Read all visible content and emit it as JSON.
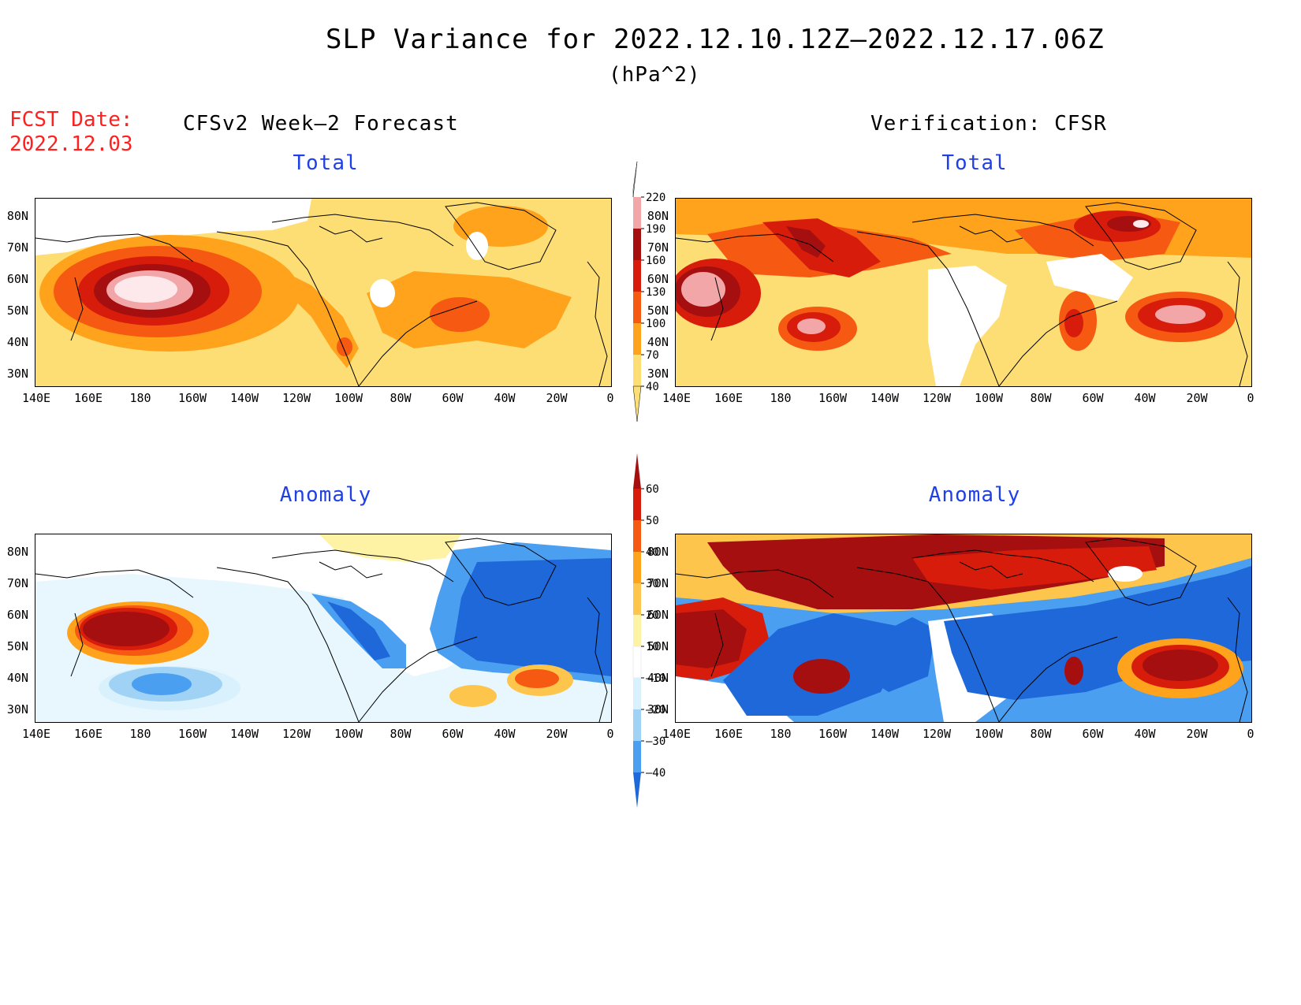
{
  "header": {
    "title": "SLP Variance for 2022.12.10.12Z–2022.12.17.06Z",
    "units": "(hPa^2)",
    "fcst_line1": "FCST Date:",
    "fcst_line2": "2022.12.03",
    "left_header": "CFSv2 Week–2 Forecast",
    "right_header": "Verification: CFSR"
  },
  "panels": [
    {
      "id": "fc-total",
      "title": "Total"
    },
    {
      "id": "ver-total",
      "title": "Total"
    },
    {
      "id": "fc-anom",
      "title": "Anomaly"
    },
    {
      "id": "ver-anom",
      "title": "Anomaly"
    }
  ],
  "axes": {
    "lat_labels": [
      "80N",
      "70N",
      "60N",
      "50N",
      "40N",
      "30N"
    ],
    "lon_labels": [
      "140E",
      "160E",
      "180",
      "160W",
      "140W",
      "120W",
      "100W",
      "80W",
      "60W",
      "40W",
      "20W",
      "0"
    ]
  },
  "colorbars": {
    "total": {
      "labels": [
        "220",
        "190",
        "160",
        "130",
        "100",
        "70",
        "40"
      ],
      "colors": [
        "#fde9ec",
        "#f2a6a8",
        "#a50f0f",
        "#d81c0c",
        "#f65a12",
        "#fea31b",
        "#fdde75"
      ]
    },
    "anomaly": {
      "labels": [
        "60",
        "50",
        "40",
        "30",
        "20",
        "10",
        "–10",
        "–20",
        "–30",
        "–40"
      ],
      "colors": [
        "#a50f0f",
        "#d81c0c",
        "#f65a12",
        "#fea31b",
        "#fdc54c",
        "#fef3a4",
        "#ffffff",
        "#d8f1fc",
        "#a0d2f6",
        "#4b9ff0",
        "#1f68d9"
      ]
    }
  }
}
